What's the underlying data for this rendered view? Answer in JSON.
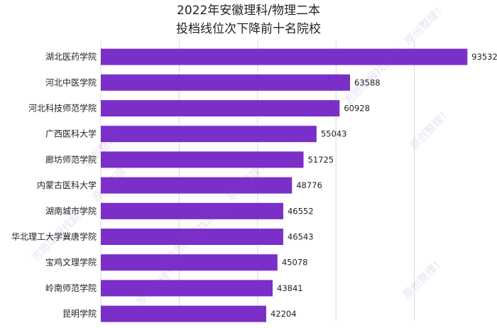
{
  "chart_data": {
    "type": "bar",
    "orientation": "horizontal",
    "title": "2022年安徽理科/物理二本",
    "subtitle": "投档线位次下降前十名院校",
    "categories": [
      "湖北医药学院",
      "河北中医学院",
      "河北科技师范学院",
      "广西医科大学",
      "廊坊师范学院",
      "内蒙古医科大学",
      "湖南城市学院",
      "华北理工大学冀唐学院",
      "宝鸡文理学院",
      "岭南师范学院",
      "昆明学院"
    ],
    "values": [
      93532,
      63588,
      60928,
      55043,
      51725,
      48776,
      46552,
      46543,
      45078,
      43841,
      42204
    ],
    "xlim": [
      0,
      100000
    ],
    "grid": true,
    "bar_color": "#7b2fc9"
  },
  "watermarks": [
    "志愿填报找励哥，原创整理！",
    "原创整理！"
  ]
}
